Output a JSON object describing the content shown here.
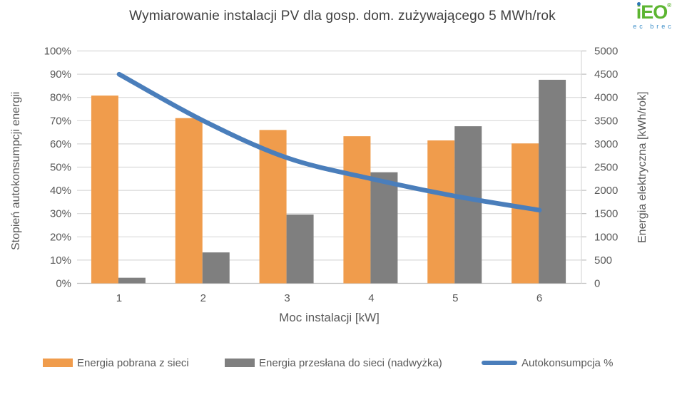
{
  "header": {
    "title": "Wymiarowanie instalacji PV dla gosp. dom. zużywającego 5 MWh/rok",
    "logo": {
      "text": "iEO",
      "registered_mark": "®",
      "subtext": "ec brec",
      "green": "#5CB531",
      "blue": "#3A8DC8"
    }
  },
  "chart_data": {
    "type": "bar",
    "subtype": "grouped bars + smooth line overlay (combo)",
    "categories": [
      "1",
      "2",
      "3",
      "4",
      "5",
      "6"
    ],
    "series": [
      {
        "name": "Energia pobrana z sieci",
        "kind": "bar",
        "axis": "right",
        "color": "#F09C4C",
        "values": [
          4040,
          3555,
          3300,
          3165,
          3075,
          3010
        ]
      },
      {
        "name": "Energia przesłana do sieci (nadwyżka)",
        "kind": "bar",
        "axis": "right",
        "color": "#7F7F7F",
        "values": [
          120,
          665,
          1480,
          2390,
          3380,
          4380
        ]
      },
      {
        "name": "Autokonsumpcja %",
        "kind": "line",
        "axis": "left",
        "color": "#4A7EBB",
        "values": [
          90,
          70,
          54,
          45,
          37.5,
          31.5
        ]
      }
    ],
    "title": "Wymiarowanie instalacji PV dla gosp. dom. zużywającego 5 MWh/rok",
    "xlabel": "Moc instalacji [kW]",
    "ylabel_left": "Stopień autokonsumpcji energii",
    "ylabel_right": "Energia elektryczna [kWh/rok]",
    "left_axis": {
      "min": 0,
      "max": 100,
      "step": 10,
      "suffix": "%"
    },
    "right_axis": {
      "min": 0,
      "max": 5000,
      "step": 500,
      "suffix": ""
    },
    "grid": true,
    "legend_position": "bottom"
  },
  "colors": {
    "grid": "#D9D9D9",
    "axis_line": "#BFBFBF",
    "axis_text": "#595959",
    "title_text": "#404040"
  }
}
